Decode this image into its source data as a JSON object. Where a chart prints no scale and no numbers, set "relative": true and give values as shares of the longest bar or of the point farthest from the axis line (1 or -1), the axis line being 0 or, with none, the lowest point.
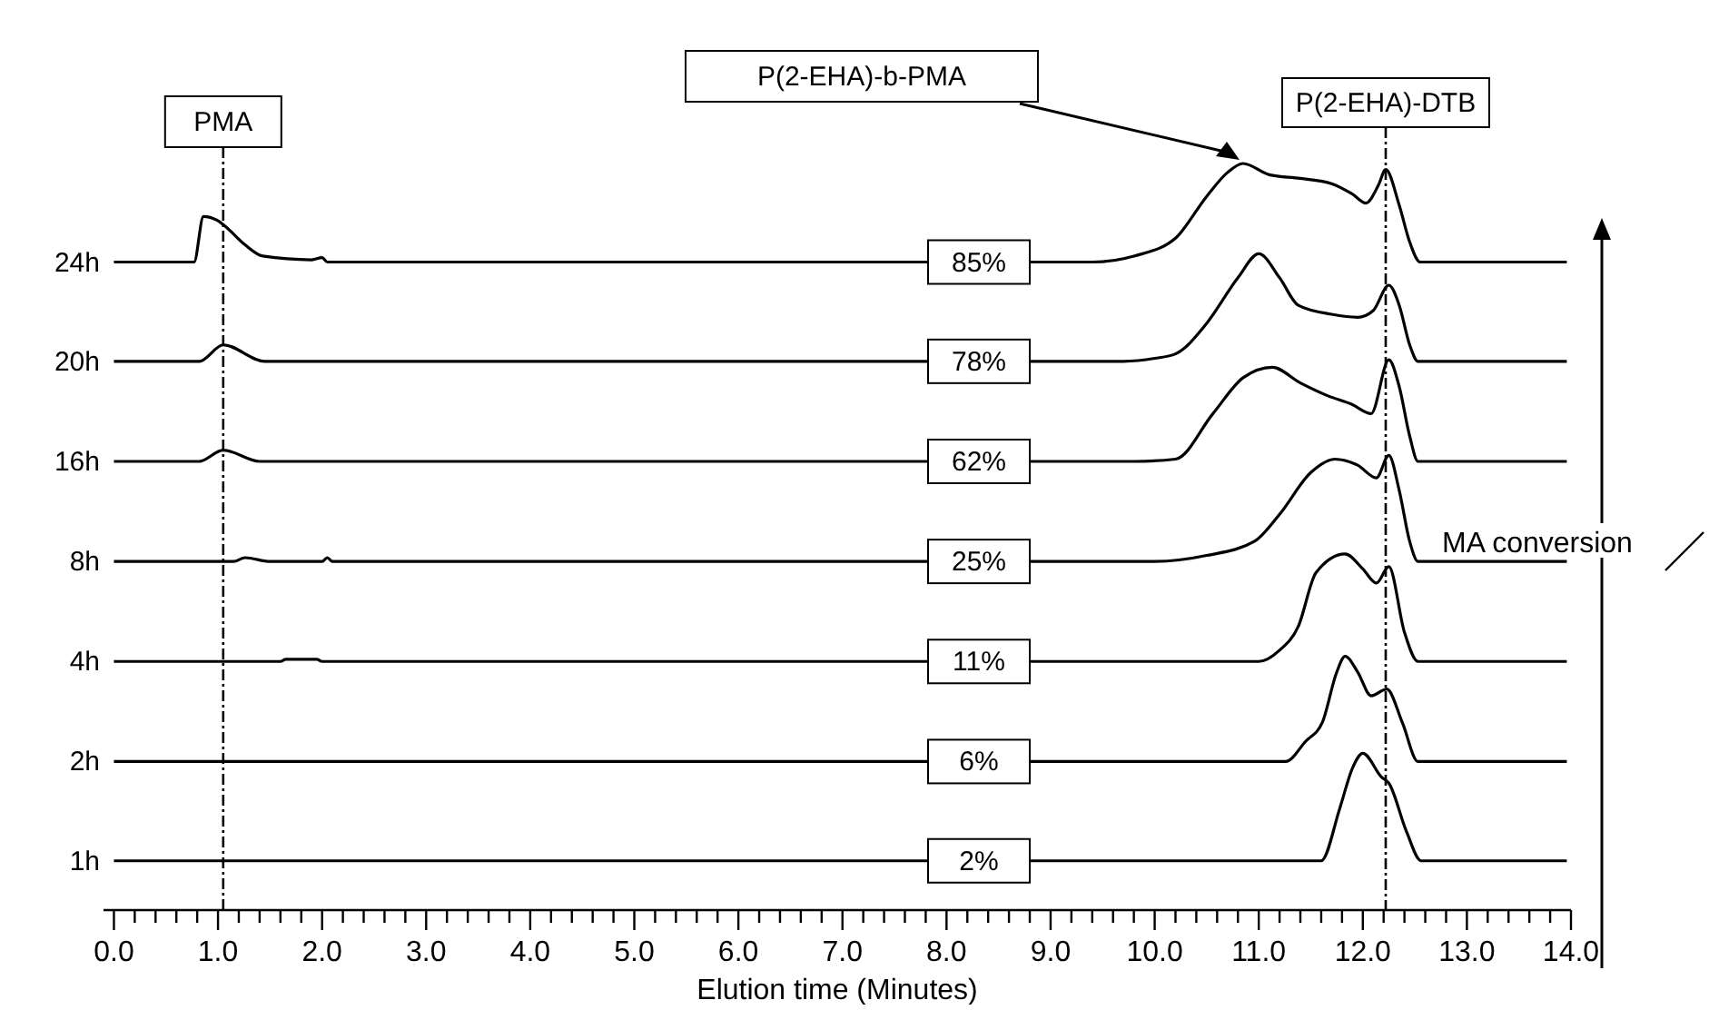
{
  "chart_data": {
    "type": "line",
    "relative": true,
    "xlabel": "Elution time (Minutes)",
    "marker": "none",
    "line_style": "solid",
    "legend": false,
    "grid": false,
    "tick_labels": "x",
    "xlim": [
      -0.1,
      14.0
    ],
    "xticks": [
      {
        "value": 0,
        "label": "0.0"
      },
      {
        "value": 0.2,
        "label": null
      },
      {
        "value": 0.4,
        "label": null
      },
      {
        "value": 0.6,
        "label": null
      },
      {
        "value": 0.8,
        "label": null
      },
      {
        "value": 1,
        "label": "1.0"
      },
      {
        "value": 1.2,
        "label": null
      },
      {
        "value": 1.4,
        "label": null
      },
      {
        "value": 1.6,
        "label": null
      },
      {
        "value": 1.8,
        "label": null
      },
      {
        "value": 2,
        "label": "2.0"
      },
      {
        "value": 2.2,
        "label": null
      },
      {
        "value": 2.4,
        "label": null
      },
      {
        "value": 2.6,
        "label": null
      },
      {
        "value": 2.8,
        "label": null
      },
      {
        "value": 3,
        "label": "3.0"
      },
      {
        "value": 3.2,
        "label": null
      },
      {
        "value": 3.4,
        "label": null
      },
      {
        "value": 3.6,
        "label": null
      },
      {
        "value": 3.8,
        "label": null
      },
      {
        "value": 4,
        "label": "4.0"
      },
      {
        "value": 4.2,
        "label": null
      },
      {
        "value": 4.4,
        "label": null
      },
      {
        "value": 4.6,
        "label": null
      },
      {
        "value": 4.8,
        "label": null
      },
      {
        "value": 5,
        "label": "5.0"
      },
      {
        "value": 5.2,
        "label": null
      },
      {
        "value": 5.4,
        "label": null
      },
      {
        "value": 5.6,
        "label": null
      },
      {
        "value": 5.8,
        "label": null
      },
      {
        "value": 6,
        "label": "6.0"
      },
      {
        "value": 6.2,
        "label": null
      },
      {
        "value": 6.4,
        "label": null
      },
      {
        "value": 6.6,
        "label": null
      },
      {
        "value": 6.8,
        "label": null
      },
      {
        "value": 7,
        "label": "7.0"
      },
      {
        "value": 7.2,
        "label": null
      },
      {
        "value": 7.4,
        "label": null
      },
      {
        "value": 7.6,
        "label": null
      },
      {
        "value": 7.8,
        "label": null
      },
      {
        "value": 8,
        "label": "8.0"
      },
      {
        "value": 8.2,
        "label": null
      },
      {
        "value": 8.4,
        "label": null
      },
      {
        "value": 8.6,
        "label": null
      },
      {
        "value": 8.8,
        "label": null
      },
      {
        "value": 9,
        "label": "9.0"
      },
      {
        "value": 9.2,
        "label": null
      },
      {
        "value": 9.4,
        "label": null
      },
      {
        "value": 9.6,
        "label": null
      },
      {
        "value": 9.8,
        "label": null
      },
      {
        "value": 10,
        "label": "10.0"
      },
      {
        "value": 10.2,
        "label": null
      },
      {
        "value": 10.4,
        "label": null
      },
      {
        "value": 10.6,
        "label": null
      },
      {
        "value": 10.8,
        "label": null
      },
      {
        "value": 11,
        "label": "11.0"
      },
      {
        "value": 11.2,
        "label": null
      },
      {
        "value": 11.4,
        "label": null
      },
      {
        "value": 11.6,
        "label": null
      },
      {
        "value": 11.8,
        "label": null
      },
      {
        "value": 12,
        "label": "12.0"
      },
      {
        "value": 12.2,
        "label": null
      },
      {
        "value": 12.4,
        "label": null
      },
      {
        "value": 12.6,
        "label": null
      },
      {
        "value": 12.8,
        "label": null
      },
      {
        "value": 13,
        "label": "13.0"
      },
      {
        "value": 13.2,
        "label": null
      },
      {
        "value": 13.4,
        "label": null
      },
      {
        "value": 13.6,
        "label": null
      },
      {
        "value": 13.8,
        "label": null
      },
      {
        "value": 14,
        "label": "14.0"
      }
    ],
    "series": [
      {
        "name": "1h",
        "color": "#000000",
        "x": [
          0,
          11.6,
          11.78,
          11.9,
          12.0,
          12.18,
          12.25,
          12.42,
          12.56,
          13.96
        ],
        "values": [
          0.066,
          0.066,
          0.137,
          0.19,
          0.21,
          0.178,
          0.17,
          0.105,
          0.066,
          0.066
        ]
      },
      {
        "name": "2h",
        "color": "#000000",
        "x": [
          0,
          11.26,
          11.45,
          11.61,
          11.75,
          11.83,
          11.95,
          12.08,
          12.23,
          12.38,
          12.53,
          13.96
        ],
        "values": [
          0.199,
          0.199,
          0.226,
          0.251,
          0.319,
          0.34,
          0.319,
          0.287,
          0.296,
          0.251,
          0.199,
          0.199
        ]
      },
      {
        "name": "4h",
        "color": "#000000",
        "x": [
          0,
          1.6,
          1.65,
          1.95,
          2.0,
          11.0,
          11.2,
          11.38,
          11.55,
          11.83,
          12.0,
          12.13,
          12.25,
          12.4,
          12.53,
          13.96
        ],
        "values": [
          0.333,
          0.333,
          0.336,
          0.336,
          0.333,
          0.333,
          0.348,
          0.38,
          0.452,
          0.477,
          0.457,
          0.438,
          0.46,
          0.372,
          0.333,
          0.333
        ]
      },
      {
        "name": "8h",
        "color": "#000000",
        "x": [
          0,
          1.15,
          1.26,
          1.5,
          2.0,
          2.05,
          2.1,
          10.0,
          10.5,
          10.96,
          11.2,
          11.5,
          11.73,
          11.95,
          12.13,
          12.25,
          12.35,
          12.45,
          12.53,
          13.96
        ],
        "values": [
          0.467,
          0.467,
          0.472,
          0.467,
          0.467,
          0.472,
          0.467,
          0.467,
          0.475,
          0.494,
          0.53,
          0.586,
          0.604,
          0.596,
          0.579,
          0.609,
          0.562,
          0.494,
          0.467,
          0.467
        ]
      },
      {
        "name": "16h",
        "color": "#000000",
        "x": [
          0,
          0.82,
          1.05,
          1.4,
          9.8,
          10.2,
          10.56,
          10.85,
          11.13,
          11.4,
          11.66,
          11.9,
          12.08,
          12.25,
          12.35,
          12.45,
          12.53,
          13.96
        ],
        "values": [
          0.601,
          0.601,
          0.616,
          0.601,
          0.601,
          0.604,
          0.665,
          0.713,
          0.727,
          0.706,
          0.689,
          0.677,
          0.665,
          0.737,
          0.701,
          0.635,
          0.601,
          0.601
        ]
      },
      {
        "name": "20h",
        "color": "#000000",
        "x": [
          0,
          0.82,
          1.05,
          1.45,
          9.7,
          10.0,
          10.2,
          10.5,
          10.8,
          11.0,
          11.2,
          11.38,
          11.7,
          11.95,
          12.1,
          12.25,
          12.35,
          12.45,
          12.53,
          13.96
        ],
        "values": [
          0.735,
          0.735,
          0.757,
          0.735,
          0.735,
          0.739,
          0.745,
          0.786,
          0.847,
          0.879,
          0.847,
          0.81,
          0.798,
          0.794,
          0.803,
          0.837,
          0.81,
          0.757,
          0.735,
          0.735
        ]
      },
      {
        "name": "24h",
        "color": "#000000",
        "x": [
          0,
          0.77,
          0.86,
          0.99,
          1.06,
          1.26,
          1.43,
          1.9,
          2.0,
          2.05,
          9.4,
          9.8,
          10.2,
          10.5,
          10.7,
          10.85,
          11.1,
          11.4,
          11.7,
          11.9,
          12.03,
          12.15,
          12.22,
          12.35,
          12.45,
          12.55,
          13.96
        ],
        "values": [
          0.868,
          0.868,
          0.929,
          0.924,
          0.917,
          0.891,
          0.876,
          0.871,
          0.874,
          0.868,
          0.868,
          0.876,
          0.9,
          0.956,
          0.988,
          1,
          0.985,
          0.98,
          0.973,
          0.959,
          0.947,
          0.971,
          0.992,
          0.944,
          0.895,
          0.868,
          0.868
        ]
      }
    ],
    "ref_lines": [
      {
        "axis": "x",
        "value": 1.05,
        "label": "PMA",
        "line_style": "dashdot",
        "color": "#000000"
      },
      {
        "axis": "x",
        "value": 12.22,
        "label": "P(2-EHA)-DTB",
        "line_style": "dashdot",
        "color": "#000000"
      }
    ],
    "annotations": [
      "P(2-EHA)-b-PMA",
      "85%",
      "78%",
      "62%",
      "25%",
      "11%",
      "6%",
      "2%",
      "MA conversion"
    ]
  }
}
